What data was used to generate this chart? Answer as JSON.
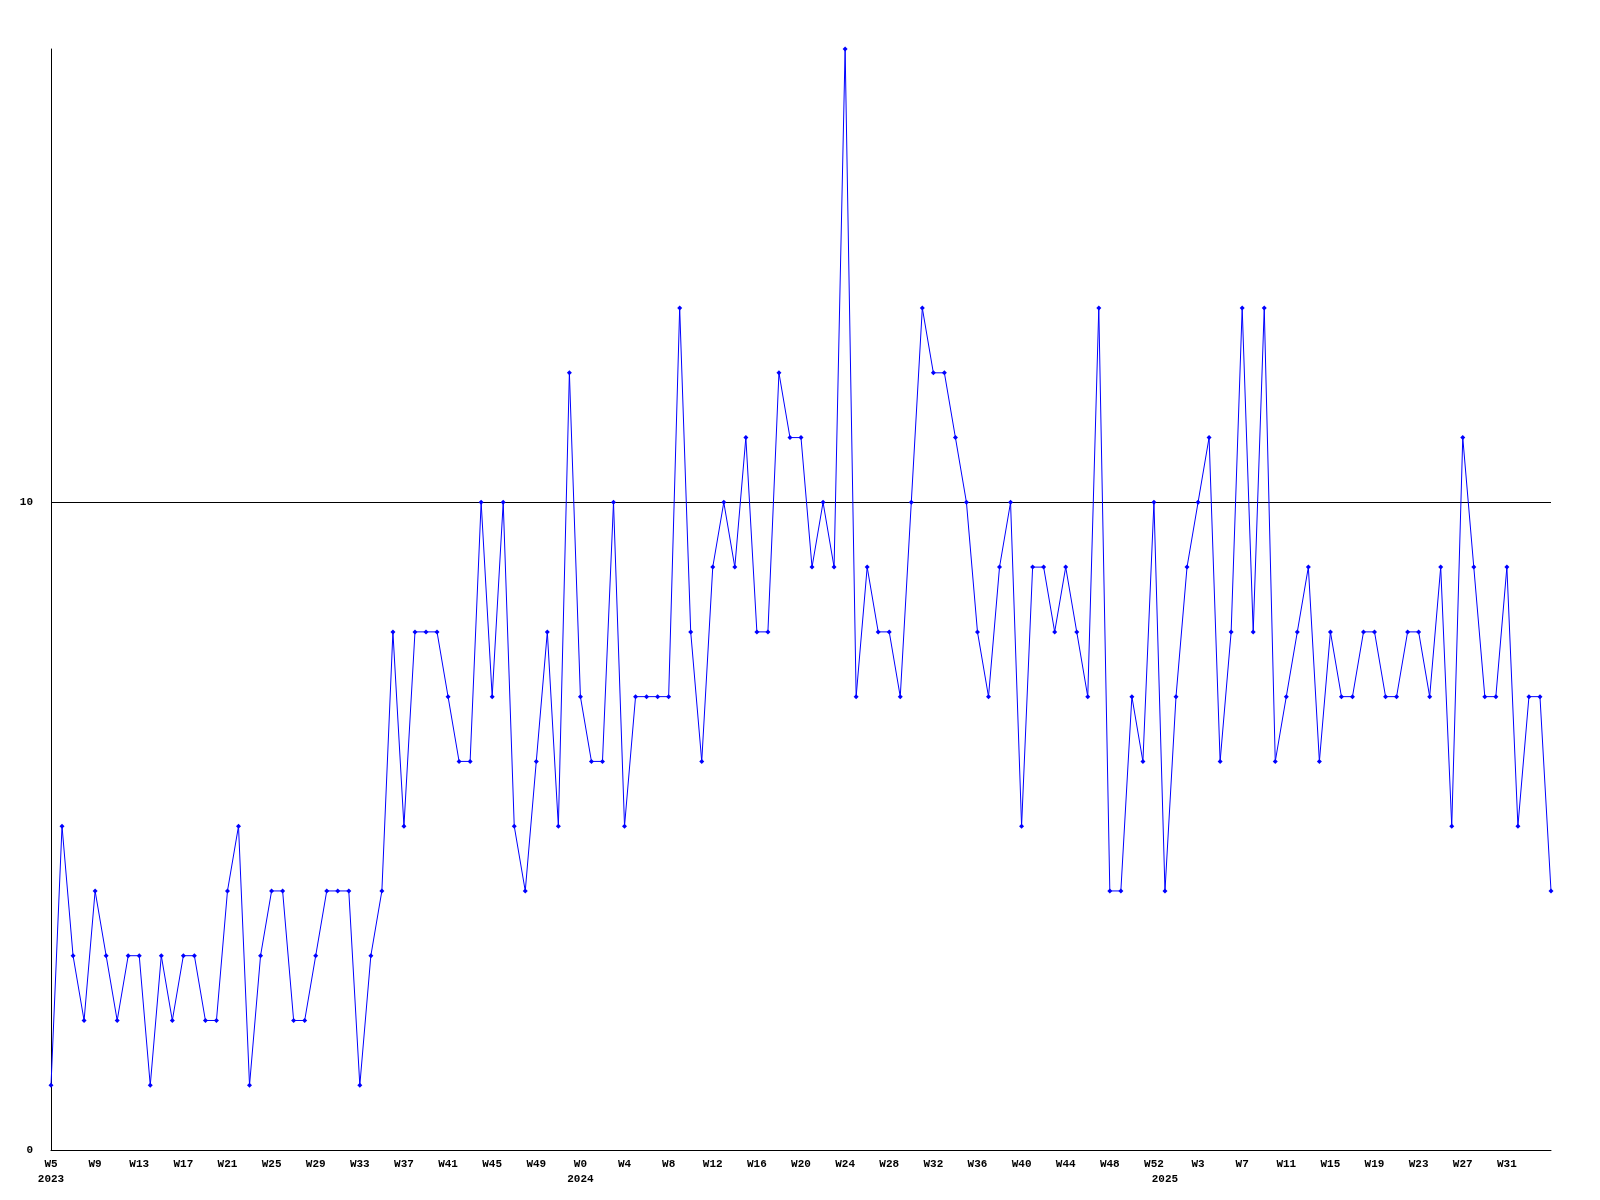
{
  "chart_data": {
    "type": "line",
    "categories": [
      "W5\n2023",
      null,
      null,
      null,
      "W9",
      null,
      null,
      null,
      "W13",
      null,
      null,
      null,
      "W17",
      null,
      null,
      null,
      "W21",
      null,
      null,
      null,
      "W25",
      null,
      null,
      null,
      "W29",
      null,
      null,
      null,
      "W33",
      null,
      null,
      null,
      "W37",
      null,
      null,
      null,
      "W41",
      null,
      null,
      null,
      "W45",
      null,
      null,
      null,
      "W49",
      null,
      null,
      null,
      "W0\n2024",
      null,
      null,
      null,
      "W4",
      null,
      null,
      null,
      "W8",
      null,
      null,
      null,
      "W12",
      null,
      null,
      null,
      "W16",
      null,
      null,
      null,
      "W20",
      null,
      null,
      null,
      "W24",
      null,
      null,
      null,
      "W28",
      null,
      null,
      null,
      "W32",
      null,
      null,
      null,
      "W36",
      null,
      null,
      null,
      "W40",
      null,
      null,
      null,
      "W44",
      null,
      null,
      null,
      "W48",
      null,
      null,
      null,
      "W52",
      "\n2025",
      null,
      null,
      "W3",
      null,
      null,
      null,
      "W7",
      null,
      null,
      null,
      "W11",
      null,
      null,
      null,
      "W15",
      null,
      null,
      null,
      "W19",
      null,
      null,
      null,
      "W23",
      null,
      null,
      null,
      "W27",
      null,
      null,
      null,
      "W31",
      null,
      null,
      null,
      null
    ],
    "series": [
      {
        "color": "#0000ff",
        "values": [
          1,
          5,
          3,
          2,
          4,
          3,
          2,
          3,
          3,
          1,
          3,
          2,
          3,
          3,
          2,
          2,
          4,
          5,
          1,
          3,
          4,
          4,
          2,
          2,
          3,
          4,
          4,
          4,
          1,
          3,
          4,
          8,
          5,
          8,
          8,
          8,
          7,
          6,
          6,
          10,
          7,
          10,
          5,
          4,
          6,
          8,
          5,
          12,
          7,
          6,
          6,
          10,
          5,
          7,
          7,
          7,
          7,
          13,
          8,
          6,
          9,
          10,
          9,
          11,
          8,
          8,
          12,
          11,
          11,
          9,
          10,
          9,
          17,
          7,
          9,
          8,
          8,
          7,
          10,
          13,
          12,
          12,
          11,
          10,
          8,
          7,
          9,
          10,
          5,
          9,
          9,
          8,
          9,
          8,
          7,
          13,
          4,
          4,
          7,
          6,
          10,
          4,
          7,
          9,
          10,
          11,
          6,
          8,
          13,
          8,
          13,
          6,
          7,
          8,
          9,
          6,
          8,
          7,
          7,
          8,
          8,
          7,
          7,
          8,
          8,
          7,
          9,
          5,
          11,
          9,
          7,
          7,
          9,
          5,
          7,
          7,
          4
        ]
      }
    ],
    "ylim": [
      0,
      17
    ],
    "yticks": [
      0,
      10
    ],
    "grid": "y",
    "marker": "diamond",
    "line_style": "solid"
  }
}
